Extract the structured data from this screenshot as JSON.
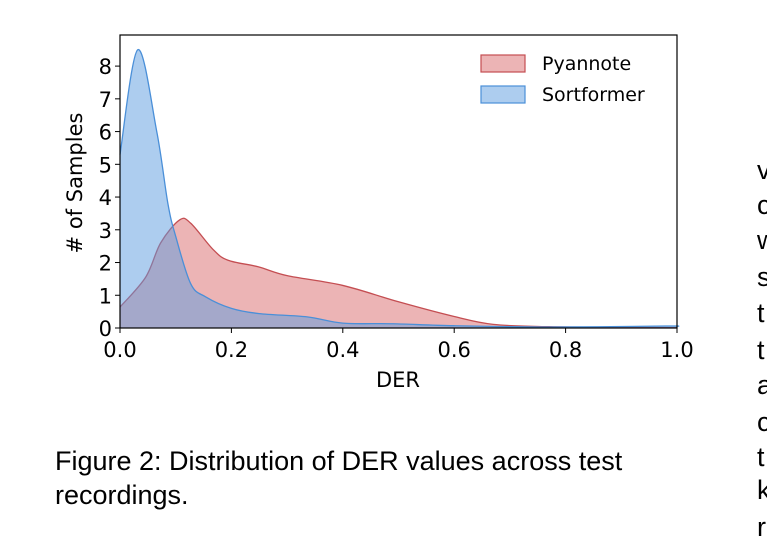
{
  "chart_data": {
    "type": "area",
    "title": "",
    "xlabel": "DER",
    "ylabel": "# of Samples",
    "xlim": [
      0.0,
      1.0
    ],
    "ylim": [
      0,
      8.95
    ],
    "xticks": [
      "0.0",
      "0.2",
      "0.4",
      "0.6",
      "0.8",
      "1.0"
    ],
    "yticks": [
      "0",
      "1",
      "2",
      "3",
      "4",
      "5",
      "6",
      "7",
      "8"
    ],
    "grid": false,
    "legend_position": "top-right",
    "series": [
      {
        "name": "Pyannote",
        "color": "#d9696b",
        "edge_color": "#c44e52",
        "x": [
          0.0,
          0.046,
          0.073,
          0.107,
          0.127,
          0.167,
          0.194,
          0.248,
          0.3,
          0.4,
          0.5,
          0.6,
          0.67,
          0.77,
          0.9,
          1.0
        ],
        "y": [
          0.64,
          1.55,
          2.6,
          3.3,
          3.2,
          2.4,
          2.07,
          1.87,
          1.6,
          1.3,
          0.8,
          0.35,
          0.11,
          0.04,
          0.02,
          0.01
        ]
      },
      {
        "name": "Sortformer",
        "color": "#5b9be0",
        "edge_color": "#4a8fd8",
        "x": [
          0.0,
          0.032,
          0.066,
          0.086,
          0.1,
          0.127,
          0.154,
          0.2,
          0.25,
          0.336,
          0.4,
          0.49,
          0.6,
          0.77,
          0.98,
          1.0
        ],
        "y": [
          5.3,
          8.5,
          6.0,
          3.8,
          2.8,
          1.35,
          0.95,
          0.6,
          0.44,
          0.34,
          0.15,
          0.13,
          0.07,
          0.03,
          0.06,
          0.05
        ]
      }
    ]
  },
  "caption": "Figure 2: Distribution of DER values across test recordings.",
  "side_text_fragments": [
    "v",
    "c",
    "w",
    "s",
    "t",
    "t",
    "a",
    "c",
    "t",
    "k",
    "r"
  ]
}
